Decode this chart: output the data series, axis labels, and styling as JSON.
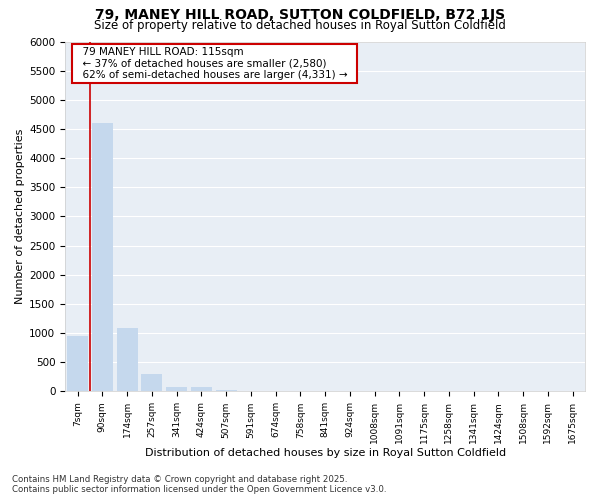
{
  "title": "79, MANEY HILL ROAD, SUTTON COLDFIELD, B72 1JS",
  "subtitle": "Size of property relative to detached houses in Royal Sutton Coldfield",
  "xlabel": "Distribution of detached houses by size in Royal Sutton Coldfield",
  "ylabel": "Number of detached properties",
  "footer1": "Contains HM Land Registry data © Crown copyright and database right 2025.",
  "footer2": "Contains public sector information licensed under the Open Government Licence v3.0.",
  "annotation_title": "79 MANEY HILL ROAD: 115sqm",
  "annotation_line1": "← 37% of detached houses are smaller (2,580)",
  "annotation_line2": "62% of semi-detached houses are larger (4,331) →",
  "bar_color": "#c5d8ed",
  "marker_color": "#cc0000",
  "annotation_box_color": "#cc0000",
  "background_color": "#ffffff",
  "plot_bg_color": "#e8eef5",
  "categories": [
    "7sqm",
    "90sqm",
    "174sqm",
    "257sqm",
    "341sqm",
    "424sqm",
    "507sqm",
    "591sqm",
    "674sqm",
    "758sqm",
    "841sqm",
    "924sqm",
    "1008sqm",
    "1091sqm",
    "1175sqm",
    "1258sqm",
    "1341sqm",
    "1424sqm",
    "1508sqm",
    "1592sqm",
    "1675sqm"
  ],
  "values": [
    950,
    4600,
    1080,
    295,
    80,
    80,
    20,
    0,
    0,
    0,
    0,
    0,
    0,
    0,
    0,
    0,
    0,
    0,
    0,
    0,
    0
  ],
  "ylim": [
    0,
    6000
  ],
  "yticks": [
    0,
    500,
    1000,
    1500,
    2000,
    2500,
    3000,
    3500,
    4000,
    4500,
    5000,
    5500,
    6000
  ],
  "property_bin_index": 1,
  "grid_color": "#ffffff",
  "grid_linewidth": 0.8
}
